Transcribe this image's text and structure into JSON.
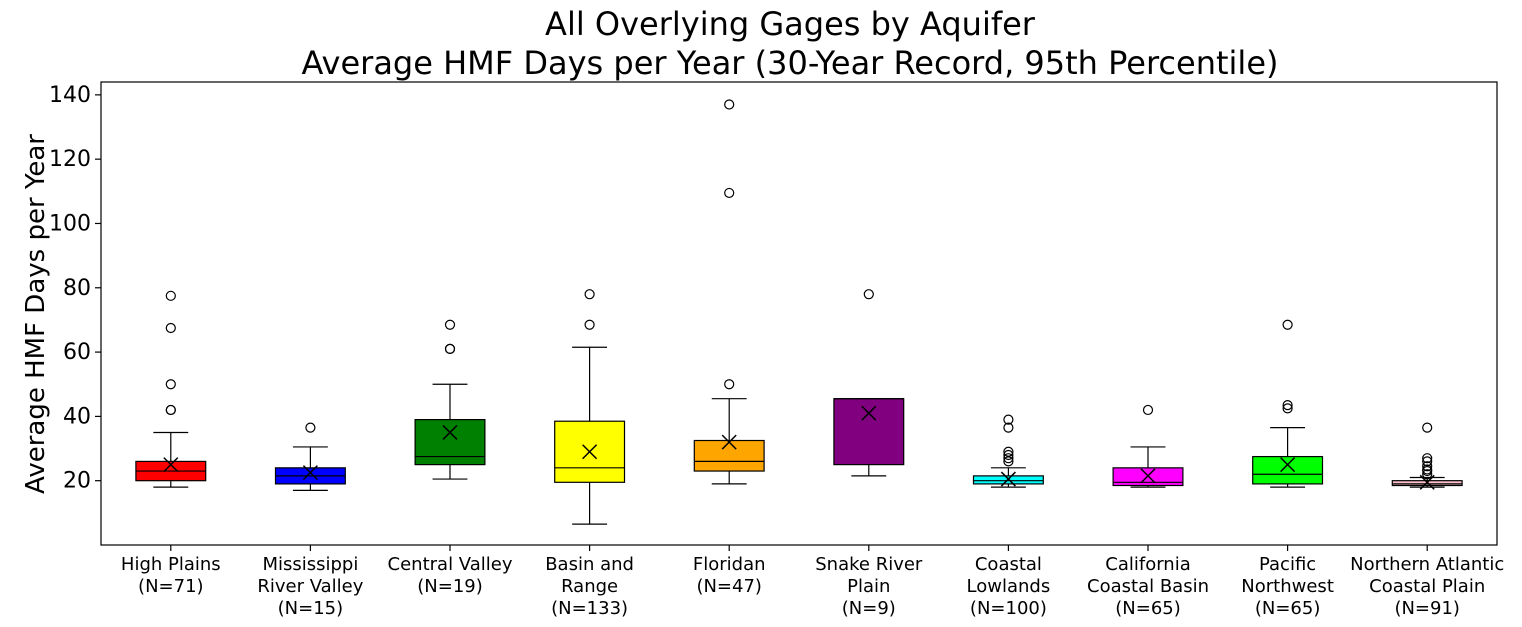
{
  "chart_data": {
    "type": "box",
    "title_lines": [
      "All Overlying Gages by Aquifer",
      "Average HMF Days per Year (30-Year Record, 95th Percentile)"
    ],
    "xlabel": "",
    "ylabel": "Average HMF Days per Year",
    "ylim": [
      0,
      144
    ],
    "yticks": [
      20,
      40,
      60,
      80,
      100,
      120,
      140
    ],
    "grid": false,
    "mean_marker": "x",
    "categories": [
      {
        "label_lines": [
          "High Plains",
          "(N=71)"
        ],
        "color": "#ff0000",
        "whisker_low": 18,
        "q1": 20,
        "median": 23,
        "q3": 26,
        "whisker_high": 35,
        "mean": 25,
        "outliers": [
          42,
          42,
          50,
          67.5,
          77.5
        ]
      },
      {
        "label_lines": [
          "Mississippi",
          "River Valley",
          "(N=15)"
        ],
        "color": "#0000ff",
        "whisker_low": 17,
        "q1": 19,
        "median": 21.5,
        "q3": 24,
        "whisker_high": 30.5,
        "mean": 22.5,
        "outliers": [
          36.5
        ]
      },
      {
        "label_lines": [
          "Central Valley",
          "(N=19)"
        ],
        "color": "#008000",
        "whisker_low": 20.5,
        "q1": 25,
        "median": 27.5,
        "q3": 39,
        "whisker_high": 50,
        "mean": 35,
        "outliers": [
          61,
          61,
          68.5
        ]
      },
      {
        "label_lines": [
          "Basin and",
          "Range",
          "(N=133)"
        ],
        "color": "#ffff00",
        "whisker_low": 6.5,
        "q1": 19.5,
        "median": 24,
        "q3": 38.5,
        "whisker_high": 61.5,
        "mean": 29,
        "outliers": [
          68.5,
          78
        ]
      },
      {
        "label_lines": [
          "Floridan",
          "(N=47)"
        ],
        "color": "#ffa500",
        "whisker_low": 19,
        "q1": 23,
        "median": 26,
        "q3": 32.5,
        "whisker_high": 45.5,
        "mean": 32,
        "outliers": [
          50,
          109.5,
          137
        ]
      },
      {
        "label_lines": [
          "Snake River",
          "Plain",
          "(N=9)"
        ],
        "color": "#800080",
        "whisker_low": 21.5,
        "q1": 25,
        "median": 45.5,
        "q3": 45.5,
        "whisker_high": 45.5,
        "mean": 41,
        "outliers": [
          78
        ]
      },
      {
        "label_lines": [
          "Coastal",
          "Lowlands",
          "(N=100)"
        ],
        "color": "#00ffff",
        "whisker_low": 18,
        "q1": 19,
        "median": 20,
        "q3": 21.5,
        "whisker_high": 24,
        "mean": 20.5,
        "outliers": [
          26,
          27,
          28,
          29,
          36.5,
          39
        ]
      },
      {
        "label_lines": [
          "California",
          "Coastal Basin",
          "(N=65)"
        ],
        "color": "#ff00ff",
        "whisker_low": 18,
        "q1": 18.5,
        "median": 19.5,
        "q3": 24,
        "whisker_high": 30.5,
        "mean": 21.5,
        "outliers": [
          42
        ]
      },
      {
        "label_lines": [
          "Pacific",
          "Northwest",
          "(N=65)"
        ],
        "color": "#00ff00",
        "whisker_low": 18,
        "q1": 19,
        "median": 22,
        "q3": 27.5,
        "whisker_high": 36.5,
        "mean": 25,
        "outliers": [
          42.5,
          43.5,
          68.5
        ]
      },
      {
        "label_lines": [
          "Northern Atlantic",
          "Coastal Plain",
          "(N=91)"
        ],
        "color": "#ffc0cb",
        "whisker_low": 18,
        "q1": 18.5,
        "median": 19,
        "q3": 20,
        "whisker_high": 21,
        "mean": 19.5,
        "outliers": [
          22,
          23,
          23.5,
          24.5,
          26,
          27,
          36.5
        ]
      }
    ]
  }
}
